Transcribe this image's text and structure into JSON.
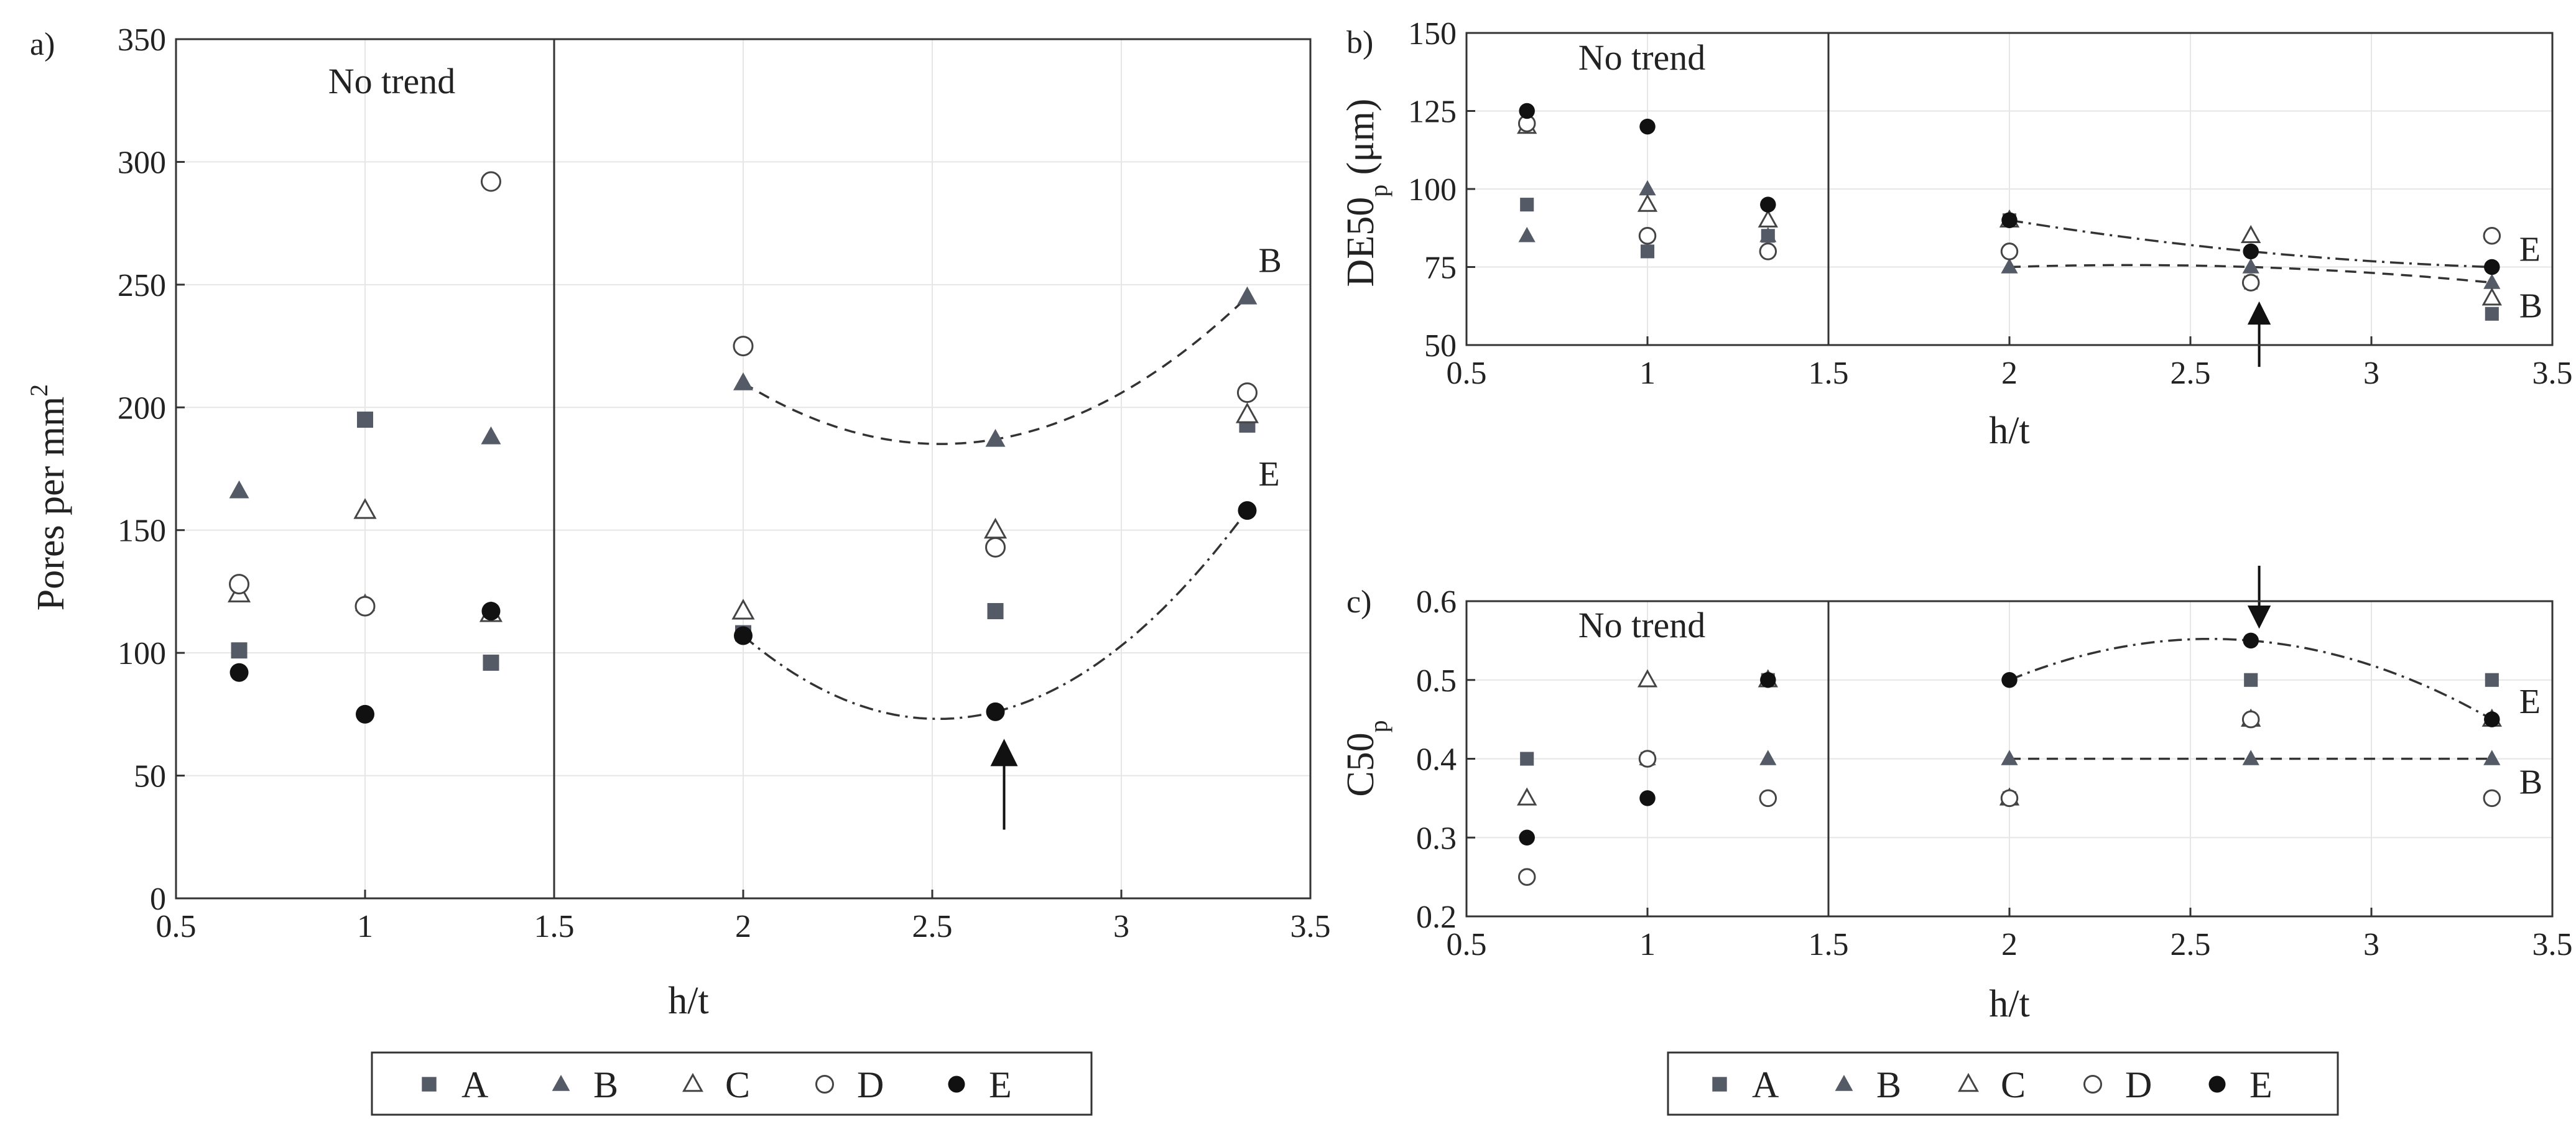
{
  "colors": {
    "filled": "#555b66",
    "black": "#111111",
    "line": "#333333",
    "grid": "#e6e6e6"
  },
  "legend": {
    "a": {
      "symbol": "square-filled",
      "label": "A"
    },
    "b": {
      "symbol": "triangle-filled",
      "label": "B"
    },
    "c": {
      "symbol": "triangle-open",
      "label": "C"
    },
    "d": {
      "symbol": "circle-open",
      "label": "D"
    },
    "e": {
      "symbol": "circle-filled-black",
      "label": "E"
    }
  },
  "chart_data": [
    {
      "id": "a",
      "type": "scatter",
      "panel_label": "a)",
      "note": "No trend",
      "xlabel": "h/t",
      "ylabel": {
        "main": "Pores per mm",
        "sup": "2"
      },
      "xlim": [
        0.5,
        3.5
      ],
      "ylim": [
        0,
        350
      ],
      "xticks": [
        "0.5",
        "1",
        "1.5",
        "2",
        "2.5",
        "3",
        "3.5"
      ],
      "yticks": [
        "0",
        "50",
        "100",
        "150",
        "200",
        "250",
        "300",
        "350"
      ],
      "divider_x": 1.5,
      "series": [
        {
          "name": "A",
          "x": [
            0.667,
            1.0,
            1.333,
            2.0,
            2.667,
            3.333
          ],
          "y": [
            101,
            195,
            96,
            108,
            117,
            193
          ]
        },
        {
          "name": "B",
          "x": [
            0.667,
            1.0,
            1.333,
            2.0,
            2.667,
            3.333
          ],
          "y": [
            166,
            120,
            188,
            210,
            187,
            245
          ]
        },
        {
          "name": "C",
          "x": [
            0.667,
            1.0,
            1.333,
            2.0,
            2.667,
            3.333
          ],
          "y": [
            124,
            158,
            116,
            117,
            150,
            197
          ]
        },
        {
          "name": "D",
          "x": [
            0.667,
            1.0,
            1.333,
            2.0,
            2.667,
            3.333
          ],
          "y": [
            128,
            119,
            292,
            225,
            143,
            206
          ]
        },
        {
          "name": "E",
          "x": [
            0.667,
            1.0,
            1.333,
            2.0,
            2.667,
            3.333
          ],
          "y": [
            92,
            75,
            117,
            107,
            76,
            158
          ]
        }
      ],
      "fits": [
        {
          "label": "B",
          "style": "dashed",
          "points": [
            [
              2.0,
              210
            ],
            [
              2.667,
              187
            ],
            [
              3.333,
              245
            ]
          ]
        },
        {
          "label": "E",
          "style": "dashdot",
          "points": [
            [
              2.0,
              107
            ],
            [
              2.667,
              76
            ],
            [
              3.333,
              158
            ]
          ]
        }
      ],
      "arrow": {
        "x": 2.69,
        "y_tail": 28,
        "y_head": 65,
        "direction": "up"
      }
    },
    {
      "id": "b",
      "type": "scatter",
      "panel_label": "b)",
      "note": "No trend",
      "xlabel": "h/t",
      "ylabel": {
        "main": "DE50",
        "sub": "p",
        "unit": " (μm)"
      },
      "xlim": [
        0.5,
        3.5
      ],
      "ylim": [
        50,
        150
      ],
      "xticks": [
        "0.5",
        "1",
        "1.5",
        "2",
        "2.5",
        "3",
        "3.5"
      ],
      "yticks": [
        "50",
        "75",
        "100",
        "125",
        "150"
      ],
      "divider_x": 1.5,
      "series": [
        {
          "name": "A",
          "x": [
            0.667,
            1.0,
            1.333,
            2.0,
            2.667,
            3.333
          ],
          "y": [
            95,
            80,
            85,
            90,
            70,
            60
          ]
        },
        {
          "name": "B",
          "x": [
            0.667,
            1.0,
            1.333,
            2.0,
            2.667,
            3.333
          ],
          "y": [
            85,
            100,
            85,
            75,
            75,
            70
          ]
        },
        {
          "name": "C",
          "x": [
            0.667,
            1.0,
            1.333,
            2.0,
            2.667,
            3.333
          ],
          "y": [
            120,
            95,
            90,
            90,
            85,
            65
          ]
        },
        {
          "name": "D",
          "x": [
            0.667,
            1.0,
            1.333,
            2.0,
            2.667,
            3.333
          ],
          "y": [
            121,
            85,
            80,
            80,
            70,
            85
          ]
        },
        {
          "name": "E",
          "x": [
            0.667,
            1.0,
            1.333,
            2.0,
            2.667,
            3.333
          ],
          "y": [
            125,
            120,
            95,
            90,
            80,
            75
          ]
        }
      ],
      "fits": [
        {
          "label": "E",
          "style": "dashdot",
          "points": [
            [
              2.0,
              90
            ],
            [
              2.667,
              80
            ],
            [
              3.333,
              75
            ]
          ]
        },
        {
          "label": "B",
          "style": "dashed",
          "points": [
            [
              2.0,
              75
            ],
            [
              2.667,
              75
            ],
            [
              3.333,
              70
            ]
          ]
        }
      ],
      "arrow": {
        "x": 2.69,
        "y_tail": 43,
        "y_head": 64,
        "direction": "up"
      }
    },
    {
      "id": "c",
      "type": "scatter",
      "panel_label": "c)",
      "note": "No trend",
      "xlabel": "h/t",
      "ylabel": {
        "main": "C50",
        "sub": "p"
      },
      "xlim": [
        0.5,
        3.5
      ],
      "ylim": [
        0.2,
        0.6
      ],
      "xticks": [
        "0.5",
        "1",
        "1.5",
        "2",
        "2.5",
        "3",
        "3.5"
      ],
      "yticks": [
        "0.2",
        "0.3",
        "0.4",
        "0.5",
        "0.6"
      ],
      "divider_x": 1.5,
      "series": [
        {
          "name": "A",
          "x": [
            0.667,
            1.0,
            1.333,
            2.0,
            2.667,
            3.333
          ],
          "y": [
            0.4,
            0.4,
            0.5,
            0.35,
            0.5,
            0.5
          ]
        },
        {
          "name": "B",
          "x": [
            0.667,
            1.0,
            1.333,
            2.0,
            2.667,
            3.333
          ],
          "y": [
            0.35,
            0.4,
            0.4,
            0.4,
            0.4,
            0.4
          ]
        },
        {
          "name": "C",
          "x": [
            0.667,
            1.0,
            1.333,
            2.0,
            2.667,
            3.333
          ],
          "y": [
            0.35,
            0.5,
            0.5,
            0.35,
            0.45,
            0.45
          ]
        },
        {
          "name": "D",
          "x": [
            0.667,
            1.0,
            1.333,
            2.0,
            2.667,
            3.333
          ],
          "y": [
            0.25,
            0.4,
            0.35,
            0.35,
            0.45,
            0.35
          ]
        },
        {
          "name": "E",
          "x": [
            0.667,
            1.0,
            1.333,
            2.0,
            2.667,
            3.333
          ],
          "y": [
            0.3,
            0.35,
            0.5,
            0.5,
            0.55,
            0.45
          ]
        }
      ],
      "fits": [
        {
          "label": "E",
          "style": "dashdot",
          "points": [
            [
              2.0,
              0.5
            ],
            [
              2.667,
              0.55
            ],
            [
              3.333,
              0.45
            ]
          ]
        },
        {
          "label": "B",
          "style": "dashed",
          "points": [
            [
              2.0,
              0.4
            ],
            [
              2.667,
              0.4
            ],
            [
              3.333,
              0.4
            ]
          ]
        }
      ],
      "arrow": {
        "x": 2.69,
        "y_tail": 0.645,
        "y_head": 0.565,
        "direction": "down"
      }
    }
  ]
}
